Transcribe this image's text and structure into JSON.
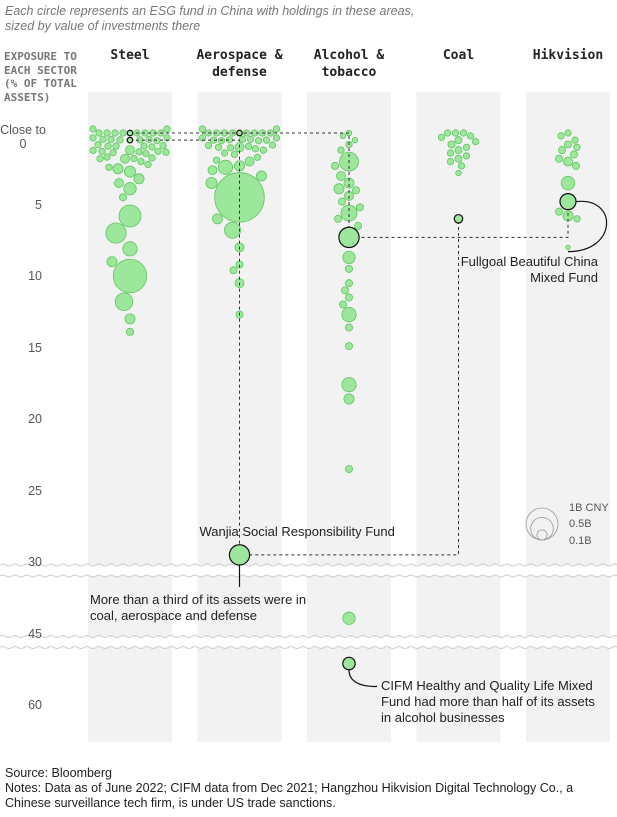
{
  "chart_data": {
    "type": "beeswarm",
    "subtitle": "Each circle represents an ESG fund in China with holdings in these areas, sized by value of investments there",
    "y_axis_title": "EXPOSURE TO EACH SECTOR (% OF TOTAL ASSETS)",
    "categories": [
      "Steel",
      "Aerospace & defense",
      "Alcohol & tobacco",
      "Coal",
      "Hikvision"
    ],
    "ylim": [
      0,
      60
    ],
    "yticks": [
      {
        "value": 0,
        "label": "Close to 0"
      },
      5,
      10,
      15,
      20,
      25,
      30,
      45,
      60
    ],
    "axis_breaks": [
      30,
      45
    ],
    "color": "#9ce79c",
    "stroke": "#5fc55f",
    "groups": [
      {
        "values": [
          0,
          0,
          0,
          0,
          0,
          0,
          0,
          0,
          0,
          0,
          0.2,
          0.2,
          0.2,
          0.2,
          0.3,
          0.3,
          0.3,
          0.4,
          0.4,
          0.5,
          0.5,
          0.5,
          0.6,
          0.7,
          0.8,
          0.9,
          1,
          1,
          1.1,
          1.2,
          1.3,
          1.4,
          1.5,
          1.6,
          1.8,
          2,
          2.2,
          2.4,
          1.2,
          2.5,
          1.8,
          2.7,
          3.2,
          3.9,
          3.5,
          4.5,
          5.8,
          7,
          8.1,
          9,
          10,
          11.8,
          13,
          13.9
        ],
        "sizes": [
          0.04,
          0.04,
          0.04,
          0.04,
          0.04,
          0.04,
          0.04,
          0.04,
          0.04,
          0.04,
          0.04,
          0.04,
          0.04,
          0.04,
          0.04,
          0.04,
          0.04,
          0.04,
          0.04,
          0.04,
          0.04,
          0.04,
          0.04,
          0.04,
          0.04,
          0.04,
          0.04,
          0.04,
          0.04,
          0.04,
          0.04,
          0.04,
          0.04,
          0.04,
          0.04,
          0.04,
          0.04,
          0.04,
          0.08,
          0.1,
          0.08,
          0.12,
          0.1,
          0.15,
          0.08,
          0.05,
          0.47,
          0.4,
          0.2,
          0.1,
          1.1,
          0.3,
          0.1,
          0.05
        ]
      },
      {
        "values": [
          0,
          0,
          0,
          0,
          0,
          0,
          0,
          0,
          0,
          0,
          0.2,
          0.2,
          0.2,
          0.3,
          0.3,
          0.4,
          0.4,
          0.5,
          0.5,
          0.6,
          0.7,
          0.8,
          0.9,
          1,
          1.1,
          1.2,
          1.4,
          1.5,
          1.7,
          1.9,
          1,
          2,
          2.3,
          2.6,
          2.4,
          3,
          3.5,
          4.5,
          6,
          6.8,
          8,
          9.2,
          9.6,
          10.5,
          12.7
        ],
        "sizes": [
          0.04,
          0.04,
          0.04,
          0.04,
          0.04,
          0.04,
          0.04,
          0.04,
          0.04,
          0.04,
          0.04,
          0.04,
          0.04,
          0.04,
          0.04,
          0.04,
          0.04,
          0.04,
          0.04,
          0.04,
          0.04,
          0.04,
          0.04,
          0.04,
          0.04,
          0.04,
          0.04,
          0.04,
          0.04,
          0.04,
          0.08,
          0.08,
          0.1,
          0.08,
          0.2,
          0.1,
          0.12,
          2.4,
          0.1,
          0.25,
          0.08,
          0.05,
          0.05,
          0.08,
          0.05
        ]
      },
      {
        "values": [
          0,
          0.2,
          0.5,
          0.8,
          1.2,
          2,
          2.3,
          3,
          3.5,
          3.9,
          4,
          4.4,
          4.8,
          5.2,
          5.6,
          6,
          6.5,
          8.7,
          9.5,
          10.5,
          11,
          11.5,
          12,
          12.7,
          13.6,
          14.9,
          17.6,
          18.6,
          23.5,
          41.8
        ],
        "sizes": [
          0.03,
          0.03,
          0.03,
          0.04,
          0.04,
          0.35,
          0.05,
          0.08,
          0.1,
          0.1,
          0.05,
          0.08,
          0.05,
          0.05,
          0.25,
          0.05,
          0.05,
          0.15,
          0.05,
          0.05,
          0.05,
          0.05,
          0.05,
          0.2,
          0.05,
          0.05,
          0.2,
          0.1,
          0.05,
          0.15
        ]
      },
      {
        "values": [
          0,
          0,
          0,
          0.2,
          0.3,
          0.5,
          0.6,
          0.8,
          1,
          1.2,
          1.4,
          1.6,
          1.8,
          2,
          2.3,
          2.8
        ],
        "sizes": [
          0.04,
          0.04,
          0.04,
          0.04,
          0.04,
          0.05,
          0.04,
          0.05,
          0.04,
          0.05,
          0.04,
          0.04,
          0.05,
          0.04,
          0.04,
          0.03
        ]
      },
      {
        "values": [
          0,
          0.2,
          0.5,
          0.8,
          1,
          1.2,
          1.5,
          1.8,
          2,
          2.3,
          3.5,
          5.8,
          5.5,
          6,
          8
        ],
        "sizes": [
          0.04,
          0.04,
          0.04,
          0.05,
          0.04,
          0.05,
          0.05,
          0.05,
          0.08,
          0.05,
          0.18,
          0.1,
          0.05,
          0.04,
          0.02
        ]
      }
    ],
    "highlights": [
      {
        "label": "Fullgoal Beautiful China Mixed Fund",
        "values": [
          0,
          0,
          7.3,
          null,
          4.8
        ],
        "sizes": [
          0.03,
          0.03,
          0.4,
          null,
          0.25
        ]
      },
      {
        "label": "Wanjia Social Responsibility Fund",
        "note": "More than a third of its assets were in coal, aerospace and defense",
        "values": [
          0.5,
          29.5,
          null,
          6,
          null
        ],
        "sizes": [
          0.03,
          0.4,
          null,
          0.07,
          null
        ]
      },
      {
        "note": "CIFM Healthy and Quality Life Mixed Fund had more than half of its assets in alcohol businesses",
        "values": [
          null,
          null,
          51.3,
          null,
          null
        ],
        "sizes": [
          null,
          null,
          0.15,
          null,
          null
        ]
      }
    ],
    "size_legend": [
      {
        "value": 1,
        "label": "1B CNY"
      },
      {
        "value": 0.5,
        "label": "0.5B"
      },
      {
        "value": 0.1,
        "label": "0.1B"
      }
    ],
    "source": "Source: Bloomberg",
    "notes": "Notes: Data as of June 2022; CIFM data from Dec 2021; Hangzhou Hikvision Digital Technology Co., a Chinese surveillance tech firm, is under US trade sanctions."
  }
}
